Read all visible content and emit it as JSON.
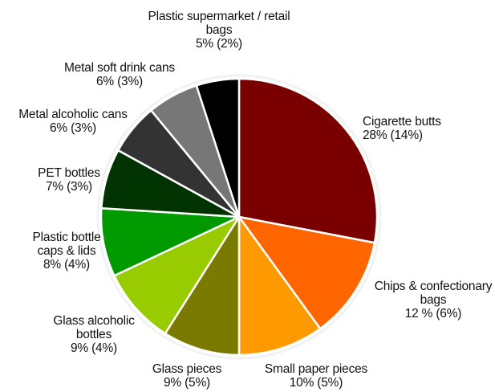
{
  "chart_data": {
    "type": "pie",
    "title": "",
    "slices": [
      {
        "label": "Cigarette butts",
        "value": 28,
        "value_label": "28% (14%)",
        "color": "#7a0000"
      },
      {
        "label": "Chips & confectionary bags",
        "value": 12,
        "value_label": "12 % (6%)",
        "color": "#ff6600"
      },
      {
        "label": "Small paper pieces",
        "value": 10,
        "value_label": "10% (5%)",
        "color": "#ff9900"
      },
      {
        "label": "Glass pieces",
        "value": 9,
        "value_label": "9% (5%)",
        "color": "#7a7a00"
      },
      {
        "label": "Glass alcoholic bottles",
        "value": 9,
        "value_label": "9% (4%)",
        "color": "#99cc00"
      },
      {
        "label": "Plastic bottle caps & lids",
        "value": 8,
        "value_label": "8% (4%)",
        "color": "#009900"
      },
      {
        "label": "PET bottles",
        "value": 7,
        "value_label": "7% (3%)",
        "color": "#003300"
      },
      {
        "label": "Metal alcoholic cans",
        "value": 6,
        "value_label": "6% (3%)",
        "color": "#333333"
      },
      {
        "label": "Metal soft drink cans",
        "value": 6,
        "value_label": "6% (3%)",
        "color": "#777777"
      },
      {
        "label": "Plastic supermarket / retail bags",
        "value": 5,
        "value_label": "5% (2%)",
        "color": "#000000"
      }
    ],
    "slice_border_color": "#ffffff"
  }
}
